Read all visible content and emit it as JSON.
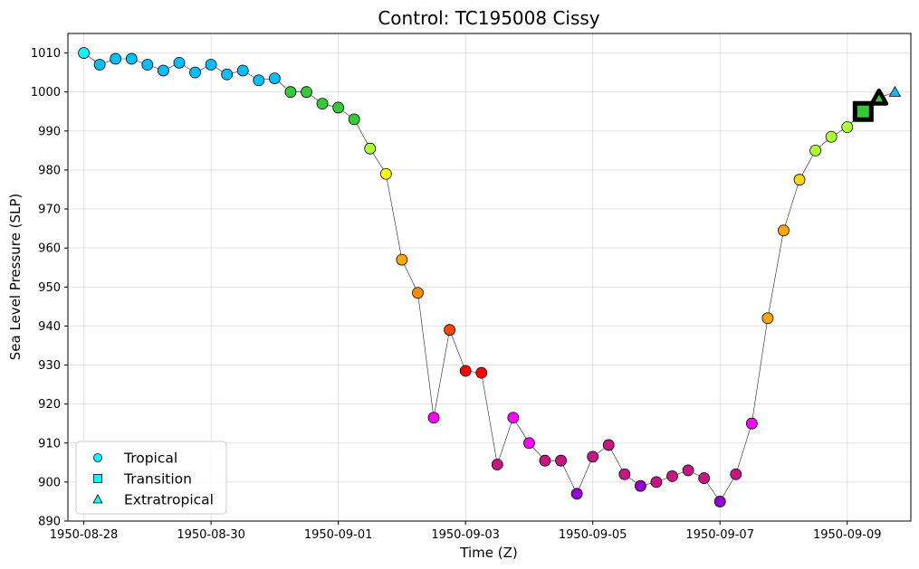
{
  "chart_data": {
    "type": "scatter",
    "title": "Control: TC195008 Cissy",
    "xlabel": "Time (Z)",
    "ylabel": "Sea Level Pressure (SLP)",
    "ylim": [
      890,
      1015
    ],
    "yticks": [
      890,
      900,
      910,
      920,
      930,
      940,
      950,
      960,
      970,
      980,
      990,
      1000,
      1010
    ],
    "xticks": [
      "1950-08-28",
      "1950-08-30",
      "1950-09-01",
      "1950-09-03",
      "1950-09-05",
      "1950-09-07",
      "1950-09-09"
    ],
    "grid": true,
    "legend": {
      "placement": "bottom-left",
      "entries": [
        {
          "label": "Tropical",
          "marker": "circle",
          "color": "#00ffff"
        },
        {
          "label": "Transition",
          "marker": "square",
          "color": "#00ffff"
        },
        {
          "label": "Extratropical",
          "marker": "triangle",
          "color": "#00ffff"
        }
      ]
    },
    "series": [
      {
        "x": [
          "1950-08-28 00:00",
          "1950-08-28 06:00",
          "1950-08-28 12:00",
          "1950-08-28 18:00",
          "1950-08-29 00:00",
          "1950-08-29 06:00",
          "1950-08-29 12:00",
          "1950-08-29 18:00",
          "1950-08-30 00:00",
          "1950-08-30 06:00",
          "1950-08-30 12:00",
          "1950-08-30 18:00",
          "1950-08-31 00:00",
          "1950-08-31 06:00",
          "1950-08-31 12:00",
          "1950-08-31 18:00",
          "1950-09-01 00:00",
          "1950-09-01 06:00",
          "1950-09-01 12:00",
          "1950-09-01 18:00",
          "1950-09-02 00:00",
          "1950-09-02 06:00",
          "1950-09-02 12:00",
          "1950-09-02 18:00",
          "1950-09-03 00:00",
          "1950-09-03 06:00",
          "1950-09-03 12:00",
          "1950-09-03 18:00",
          "1950-09-04 00:00",
          "1950-09-04 06:00",
          "1950-09-04 12:00",
          "1950-09-04 18:00",
          "1950-09-05 00:00",
          "1950-09-05 06:00",
          "1950-09-05 12:00",
          "1950-09-05 18:00",
          "1950-09-06 00:00",
          "1950-09-06 06:00",
          "1950-09-06 12:00",
          "1950-09-06 18:00",
          "1950-09-07 00:00",
          "1950-09-07 06:00",
          "1950-09-07 12:00",
          "1950-09-07 18:00",
          "1950-09-08 00:00",
          "1950-09-08 06:00",
          "1950-09-08 12:00",
          "1950-09-08 18:00",
          "1950-09-09 00:00",
          "1950-09-09 06:00",
          "1950-09-09 12:00",
          "1950-09-09 18:00"
        ],
        "y": [
          1010,
          1007,
          1008.5,
          1008.5,
          1007,
          1005.5,
          1007.5,
          1005,
          1007,
          1004.5,
          1005.5,
          1003,
          1003.5,
          1000,
          1000,
          997,
          996,
          993,
          985.5,
          979,
          957,
          948.5,
          916.5,
          939,
          928.5,
          928,
          904.5,
          916.5,
          910,
          905.5,
          905.5,
          897,
          906.5,
          909.5,
          902,
          899,
          900,
          901.5,
          903,
          901,
          895,
          902,
          915,
          942,
          964.5,
          977.5,
          985,
          988.5,
          991,
          995,
          998.5,
          1000
        ],
        "colors": [
          "#00ffff",
          "#00bfff",
          "#00bfff",
          "#00bfff",
          "#00bfff",
          "#00bfff",
          "#00bfff",
          "#00bfff",
          "#00bfff",
          "#00bfff",
          "#00bfff",
          "#00bfff",
          "#00bfff",
          "#32cd32",
          "#32cd32",
          "#32cd32",
          "#32cd32",
          "#32cd32",
          "#adff2f",
          "#ffff00",
          "#ffa500",
          "#ff8c00",
          "#ff00ff",
          "#ff4500",
          "#ff0000",
          "#ff0000",
          "#c71585",
          "#ff00ff",
          "#ff00ff",
          "#c71585",
          "#c71585",
          "#9400d3",
          "#c71585",
          "#c71585",
          "#c71585",
          "#9400d3",
          "#c71585",
          "#c71585",
          "#c71585",
          "#c71585",
          "#9400d3",
          "#c71585",
          "#ff00ff",
          "#ffa500",
          "#ffa500",
          "#ffd700",
          "#adff2f",
          "#adff2f",
          "#adff2f",
          "#32cd32",
          "#32cd32",
          "#00bfff"
        ],
        "markers": [
          "circle",
          "circle",
          "circle",
          "circle",
          "circle",
          "circle",
          "circle",
          "circle",
          "circle",
          "circle",
          "circle",
          "circle",
          "circle",
          "circle",
          "circle",
          "circle",
          "circle",
          "circle",
          "circle",
          "circle",
          "circle",
          "circle",
          "circle",
          "circle",
          "circle",
          "circle",
          "circle",
          "circle",
          "circle",
          "circle",
          "circle",
          "circle",
          "circle",
          "circle",
          "circle",
          "circle",
          "circle",
          "circle",
          "circle",
          "circle",
          "circle",
          "circle",
          "circle",
          "circle",
          "circle",
          "circle",
          "circle",
          "circle",
          "circle",
          "square",
          "triangle",
          "triangle"
        ]
      }
    ]
  }
}
